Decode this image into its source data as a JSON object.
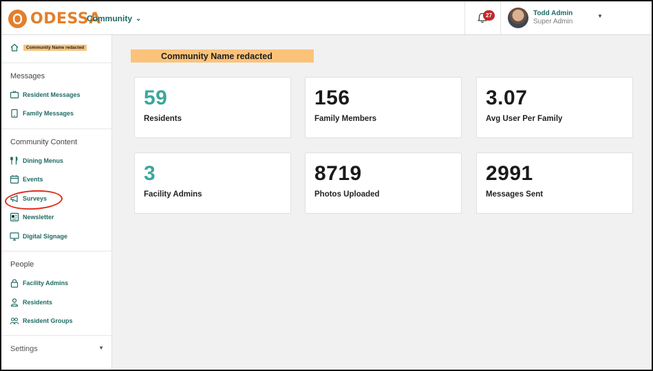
{
  "header": {
    "logo_text": "ODESSA",
    "context_label": "Community",
    "notifications_count": "27",
    "user_name": "Todd Admin",
    "user_role": "Super Admin"
  },
  "sidebar": {
    "home_redaction": "Community Name redacted",
    "sections": {
      "messages": "Messages",
      "content": "Community Content",
      "people": "People",
      "settings": "Settings"
    },
    "items": {
      "resident_messages": "Resident Messages",
      "family_messages": "Family Messages",
      "dining_menus": "Dining Menus",
      "events": "Events",
      "surveys": "Surveys",
      "newsletter": "Newsletter",
      "digital_signage": "Digital Signage",
      "facility_admins": "Facility Admins",
      "residents": "Residents",
      "resident_groups": "Resident Groups"
    }
  },
  "main": {
    "title_redaction": "Community Name redacted",
    "stats": [
      {
        "value": "59",
        "label": "Residents"
      },
      {
        "value": "156",
        "label": "Family Members"
      },
      {
        "value": "3.07",
        "label": "Avg User Per Family"
      },
      {
        "value": "3",
        "label": "Facility Admins"
      },
      {
        "value": "8719",
        "label": "Photos Uploaded"
      },
      {
        "value": "2991",
        "label": "Messages Sent"
      }
    ]
  },
  "colors": {
    "brand_orange": "#e37f2c",
    "accent_teal": "#1f6b64",
    "stat_teal": "#3ba79b",
    "badge_red": "#c4272b",
    "annotation_red": "#e02d1d",
    "redaction_orange": "#fbc37a"
  }
}
